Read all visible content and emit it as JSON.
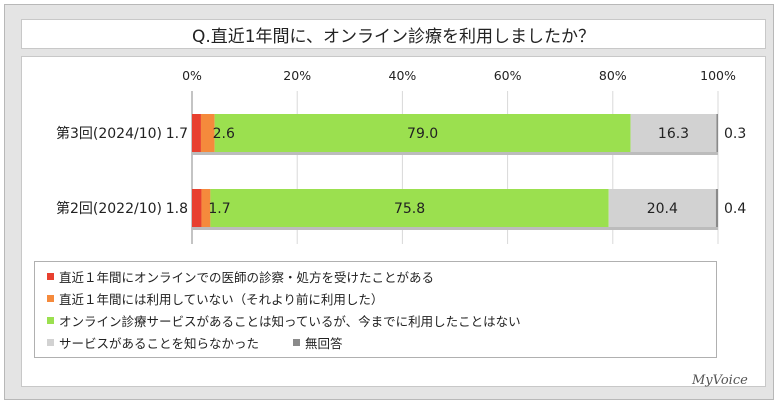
{
  "title": "Q.直近1年間に、オンライン診療を利用しましたか？",
  "brand": "MyVoice",
  "colors": [
    "#e8402f",
    "#f58a3c",
    "#9be04f",
    "#d2d2d2",
    "#8a8a8a"
  ],
  "chart_data": {
    "type": "bar",
    "orientation": "horizontal",
    "stacked": true,
    "categories": [
      "第3回(2024/10)",
      "第2回(2022/10)"
    ],
    "series": [
      {
        "name": "直近１年間にオンラインでの医師の診察・処方を受けたことがある",
        "values": [
          1.7,
          1.8
        ]
      },
      {
        "name": "直近１年間には利用していない（それより前に利用した）",
        "values": [
          2.6,
          1.7
        ]
      },
      {
        "name": "オンライン診療サービスがあることは知っているが、今までに利用したことはない",
        "values": [
          79.0,
          75.8
        ]
      },
      {
        "name": "サービスがあることを知らなかった",
        "values": [
          16.3,
          20.4
        ]
      },
      {
        "name": "無回答",
        "values": [
          0.3,
          0.4
        ]
      }
    ],
    "value_labels": [
      [
        "1.7",
        "2.6",
        "79.0",
        "16.3",
        "0.3"
      ],
      [
        "1.8",
        "1.7",
        "75.8",
        "20.4",
        "0.4"
      ]
    ],
    "xlim": [
      0,
      100
    ],
    "xticks": [
      "0%",
      "20%",
      "40%",
      "60%",
      "80%",
      "100%"
    ],
    "grid": true,
    "legend_position": "bottom"
  }
}
